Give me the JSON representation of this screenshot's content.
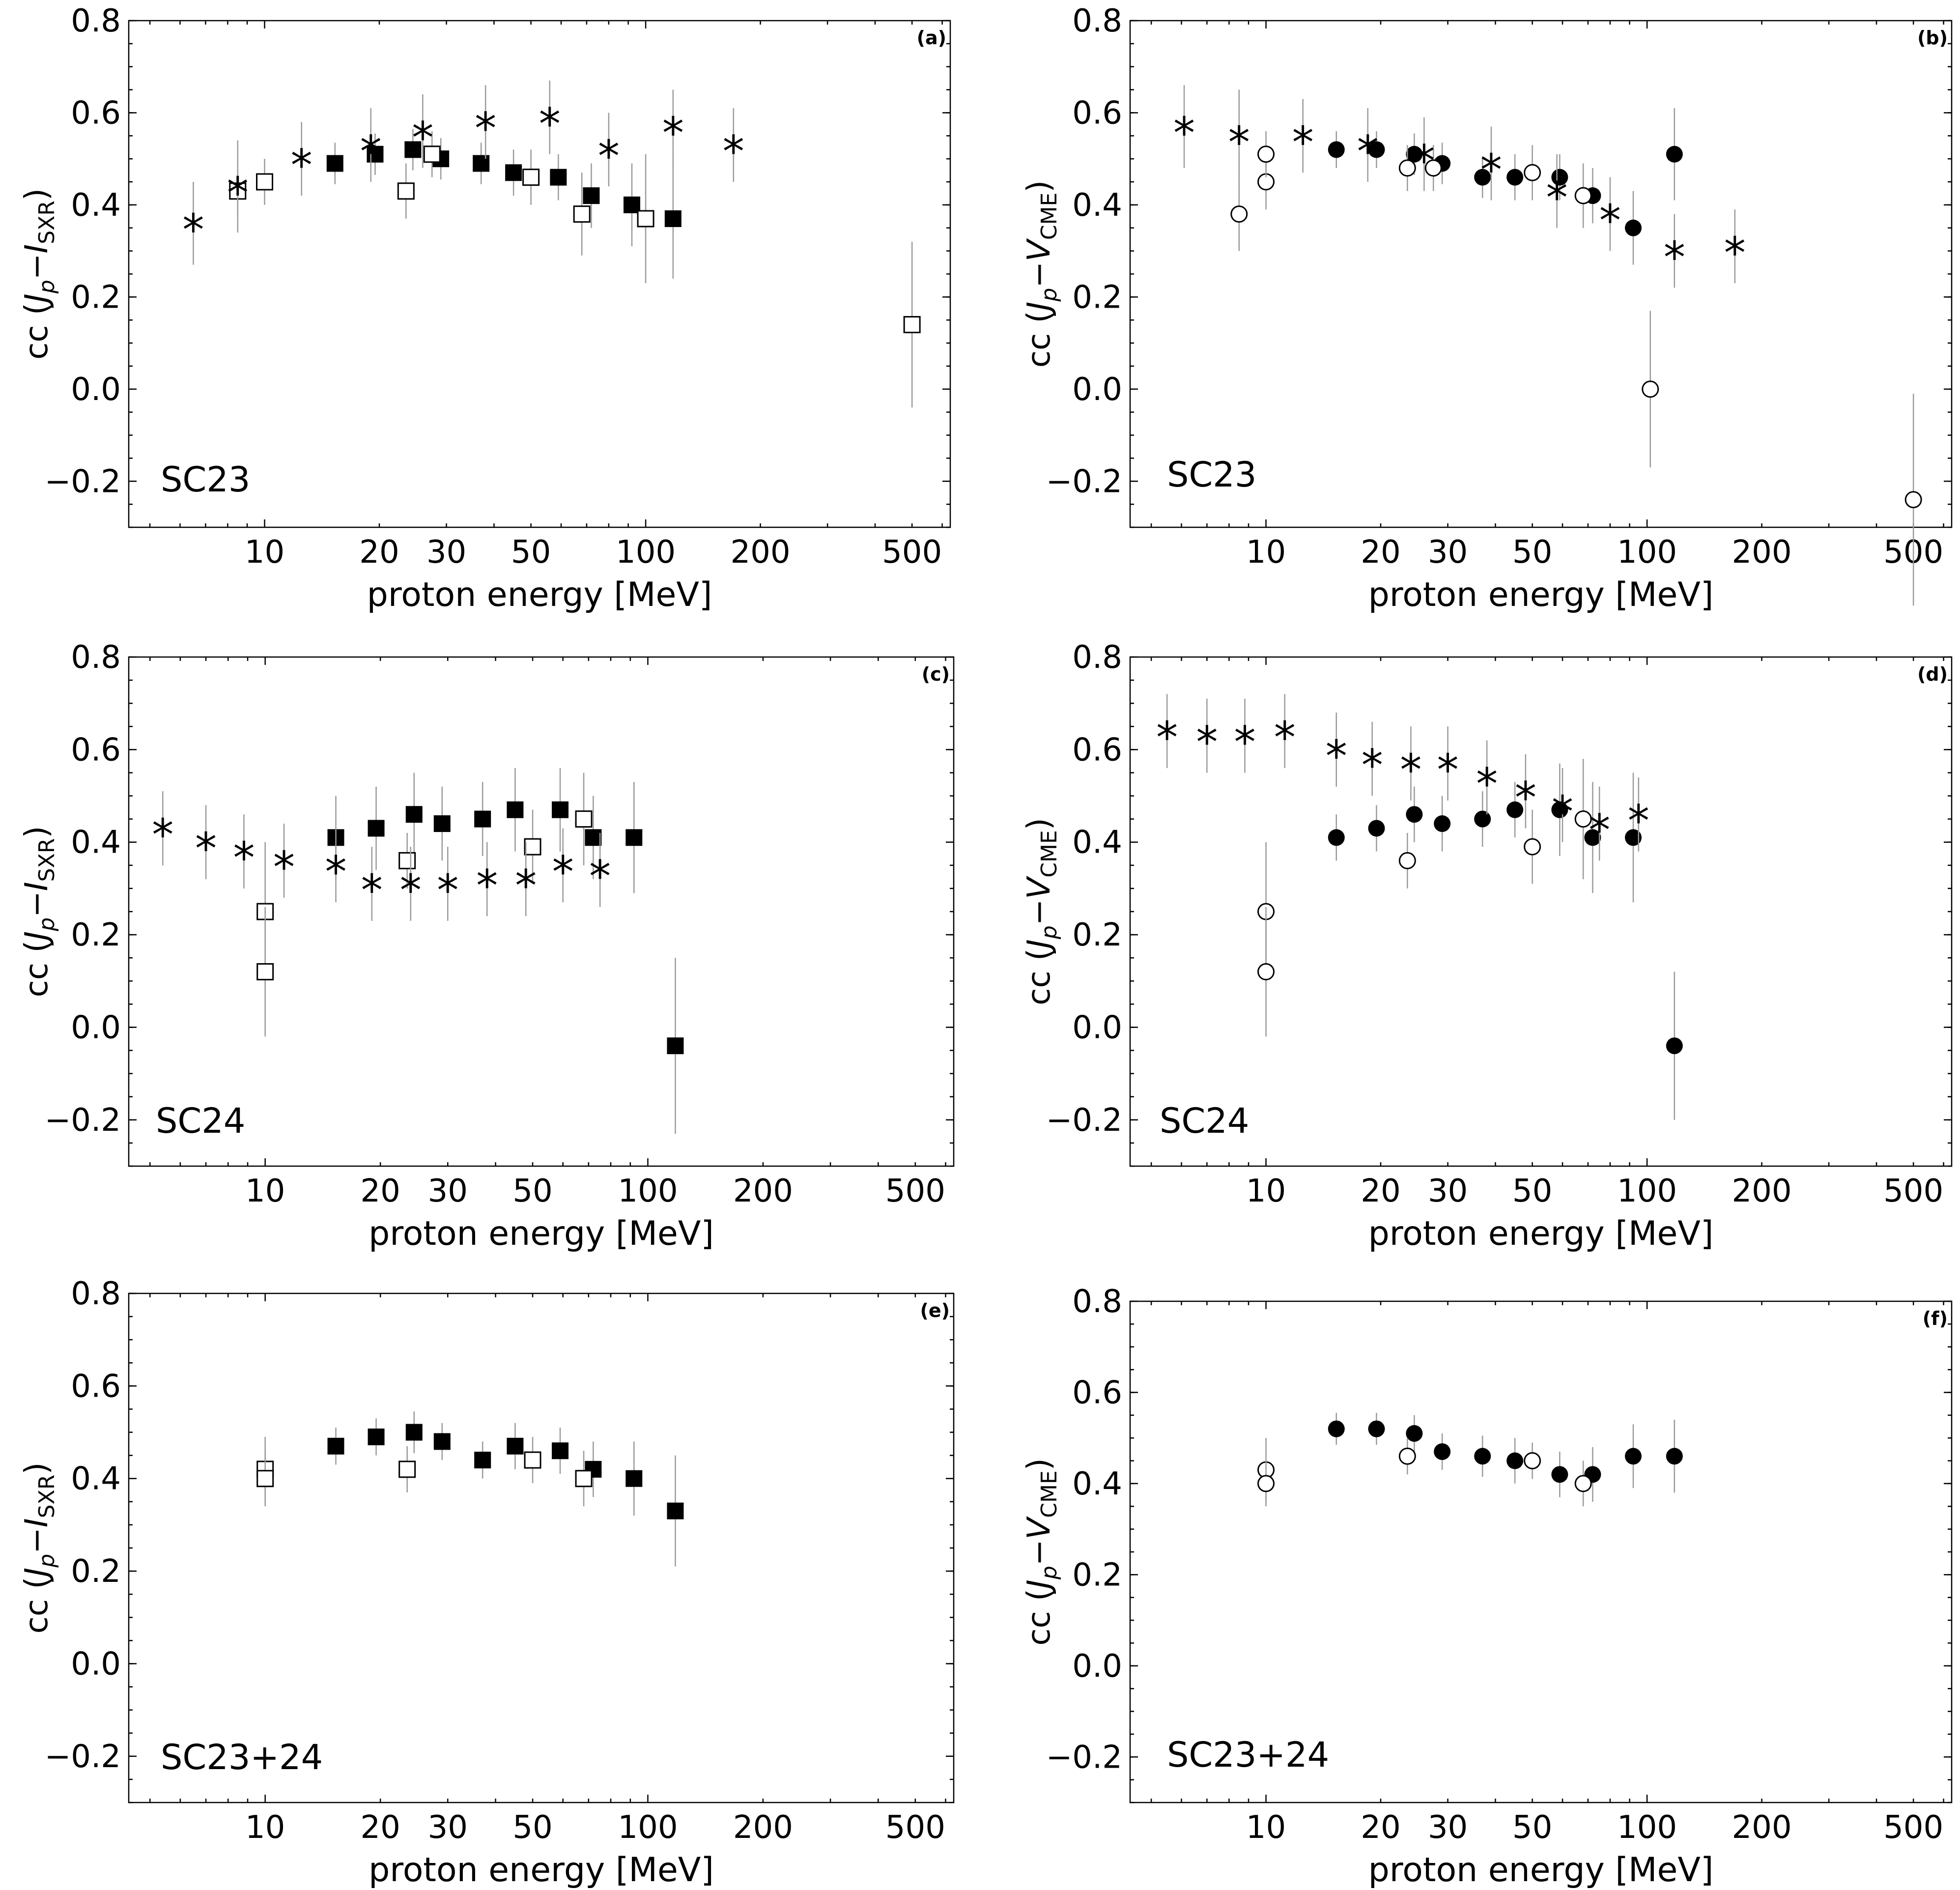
{
  "figure": {
    "x_axis_label": "proton energy [MeV]",
    "y_label_sxr": {
      "prefix": "cc (",
      "J": "J",
      "p": "p",
      "dash": "−",
      "I": "I",
      "sub": "SXR",
      "suffix": ")"
    },
    "y_label_cme": {
      "prefix": "cc (",
      "J": "J",
      "p": "p",
      "dash": "−",
      "V": "V",
      "sub": "CME",
      "suffix": ")"
    }
  },
  "chart_data": [
    {
      "panel": "(a)",
      "cycle": "SC23",
      "type": "scatter",
      "ylabel_kind": "sxr",
      "xscale": "log",
      "xlim": [
        4.4,
        630
      ],
      "ylim": [
        -0.3,
        0.8
      ],
      "xticks": [
        10,
        20,
        30,
        50,
        100,
        200,
        500
      ],
      "yticks": [
        -0.2,
        0.0,
        0.2,
        0.4,
        0.6,
        0.8
      ],
      "series": [
        {
          "name": "filled squares",
          "marker": "square-filled",
          "points": [
            [
              15.3,
              0.49,
              0.045
            ],
            [
              19.5,
              0.51,
              0.045
            ],
            [
              24.5,
              0.52,
              0.045
            ],
            [
              29,
              0.5,
              0.045
            ],
            [
              37,
              0.49,
              0.045
            ],
            [
              45,
              0.47,
              0.05
            ],
            [
              59,
              0.46,
              0.05
            ],
            [
              72,
              0.42,
              0.07
            ],
            [
              92,
              0.4,
              0.09
            ],
            [
              118,
              0.37,
              0.13
            ]
          ]
        },
        {
          "name": "open squares",
          "marker": "square-open",
          "points": [
            [
              8.5,
              0.43,
              0.05
            ],
            [
              10,
              0.45,
              0.05
            ],
            [
              23.5,
              0.43,
              0.06
            ],
            [
              27.5,
              0.51,
              0.05
            ],
            [
              50,
              0.46,
              0.06
            ],
            [
              68,
              0.38,
              0.09
            ],
            [
              100,
              0.37,
              0.14
            ],
            [
              500,
              0.14,
              0.18
            ]
          ]
        },
        {
          "name": "asterisks",
          "marker": "asterisk",
          "points": [
            [
              6.5,
              0.36,
              0.09
            ],
            [
              8.5,
              0.44,
              0.1
            ],
            [
              12.5,
              0.5,
              0.08
            ],
            [
              19,
              0.53,
              0.08
            ],
            [
              26,
              0.56,
              0.08
            ],
            [
              38,
              0.58,
              0.08
            ],
            [
              56,
              0.59,
              0.08
            ],
            [
              80,
              0.52,
              0.08
            ],
            [
              118,
              0.57,
              0.08
            ],
            [
              170,
              0.53,
              0.08
            ]
          ]
        }
      ]
    },
    {
      "panel": "(b)",
      "cycle": "SC23",
      "type": "scatter",
      "ylabel_kind": "cme",
      "xscale": "log",
      "xlim": [
        4.4,
        630
      ],
      "ylim": [
        -0.3,
        0.8
      ],
      "xticks": [
        10,
        20,
        30,
        50,
        100,
        200,
        500
      ],
      "yticks": [
        -0.2,
        0.0,
        0.2,
        0.4,
        0.6,
        0.8
      ],
      "series": [
        {
          "name": "filled circles",
          "marker": "circle-filled",
          "points": [
            [
              15.3,
              0.52,
              0.04
            ],
            [
              19.5,
              0.52,
              0.04
            ],
            [
              24.5,
              0.51,
              0.045
            ],
            [
              29,
              0.49,
              0.045
            ],
            [
              37,
              0.46,
              0.045
            ],
            [
              45,
              0.46,
              0.05
            ],
            [
              59,
              0.46,
              0.05
            ],
            [
              72,
              0.42,
              0.06
            ],
            [
              92,
              0.35,
              0.08
            ],
            [
              118,
              0.51,
              0.1
            ]
          ]
        },
        {
          "name": "open circles",
          "marker": "circle-open",
          "points": [
            [
              8.5,
              0.38,
              0.08
            ],
            [
              10,
              0.45,
              0.06
            ],
            [
              10,
              0.51,
              0.05
            ],
            [
              23.5,
              0.48,
              0.05
            ],
            [
              27.5,
              0.48,
              0.05
            ],
            [
              50,
              0.47,
              0.06
            ],
            [
              68,
              0.42,
              0.07
            ],
            [
              102,
              0.0,
              0.17
            ],
            [
              500,
              -0.24,
              0.23
            ]
          ]
        },
        {
          "name": "asterisks",
          "marker": "asterisk",
          "points": [
            [
              6.1,
              0.57,
              0.09
            ],
            [
              8.5,
              0.55,
              0.1
            ],
            [
              12.5,
              0.55,
              0.08
            ],
            [
              18.5,
              0.53,
              0.08
            ],
            [
              26,
              0.51,
              0.08
            ],
            [
              39,
              0.49,
              0.08
            ],
            [
              58,
              0.43,
              0.08
            ],
            [
              80,
              0.38,
              0.08
            ],
            [
              118,
              0.3,
              0.08
            ],
            [
              170,
              0.31,
              0.08
            ]
          ]
        }
      ]
    },
    {
      "panel": "(c)",
      "cycle": "SC24",
      "type": "scatter",
      "ylabel_kind": "sxr",
      "xscale": "log",
      "xlim": [
        4.4,
        630
      ],
      "ylim": [
        -0.3,
        0.8
      ],
      "xticks": [
        10,
        20,
        30,
        50,
        100,
        200,
        500
      ],
      "yticks": [
        -0.2,
        0.0,
        0.2,
        0.4,
        0.6,
        0.8
      ],
      "series": [
        {
          "name": "filled squares",
          "marker": "square-filled",
          "points": [
            [
              15.3,
              0.41,
              0.09
            ],
            [
              19.5,
              0.43,
              0.09
            ],
            [
              24.5,
              0.46,
              0.09
            ],
            [
              29,
              0.44,
              0.08
            ],
            [
              37,
              0.45,
              0.08
            ],
            [
              45,
              0.47,
              0.09
            ],
            [
              59,
              0.47,
              0.09
            ],
            [
              72,
              0.41,
              0.09
            ],
            [
              92,
              0.41,
              0.12
            ],
            [
              118,
              -0.04,
              0.19
            ]
          ]
        },
        {
          "name": "open squares",
          "marker": "square-open",
          "points": [
            [
              10,
              0.25,
              0.15
            ],
            [
              10,
              0.12,
              0.14
            ],
            [
              23.5,
              0.36,
              0.06
            ],
            [
              50,
              0.39,
              0.08
            ],
            [
              68,
              0.45,
              0.1
            ]
          ]
        },
        {
          "name": "asterisks",
          "marker": "asterisk",
          "points": [
            [
              5.4,
              0.43,
              0.08
            ],
            [
              7,
              0.4,
              0.08
            ],
            [
              8.8,
              0.38,
              0.08
            ],
            [
              11.2,
              0.36,
              0.08
            ],
            [
              15.3,
              0.35,
              0.08
            ],
            [
              19,
              0.31,
              0.08
            ],
            [
              24,
              0.31,
              0.08
            ],
            [
              30,
              0.31,
              0.08
            ],
            [
              38,
              0.32,
              0.08
            ],
            [
              48,
              0.32,
              0.08
            ],
            [
              60,
              0.35,
              0.08
            ],
            [
              75,
              0.34,
              0.08
            ]
          ]
        }
      ]
    },
    {
      "panel": "(d)",
      "cycle": "SC24",
      "type": "scatter",
      "ylabel_kind": "cme",
      "xscale": "log",
      "xlim": [
        4.4,
        630
      ],
      "ylim": [
        -0.3,
        0.8
      ],
      "xticks": [
        10,
        20,
        30,
        50,
        100,
        200,
        500
      ],
      "yticks": [
        -0.2,
        0.0,
        0.2,
        0.4,
        0.6,
        0.8
      ],
      "series": [
        {
          "name": "filled circles",
          "marker": "circle-filled",
          "points": [
            [
              15.3,
              0.41,
              0.05
            ],
            [
              19.5,
              0.43,
              0.05
            ],
            [
              24.5,
              0.46,
              0.06
            ],
            [
              29,
              0.44,
              0.06
            ],
            [
              37,
              0.45,
              0.06
            ],
            [
              45,
              0.47,
              0.06
            ],
            [
              59,
              0.47,
              0.1
            ],
            [
              72,
              0.41,
              0.12
            ],
            [
              92,
              0.41,
              0.14
            ],
            [
              118,
              -0.04,
              0.16
            ]
          ]
        },
        {
          "name": "open circles",
          "marker": "circle-open",
          "points": [
            [
              10,
              0.25,
              0.15
            ],
            [
              10,
              0.12,
              0.14
            ],
            [
              23.5,
              0.36,
              0.06
            ],
            [
              50,
              0.39,
              0.08
            ],
            [
              68,
              0.45,
              0.13
            ]
          ]
        },
        {
          "name": "asterisks",
          "marker": "asterisk",
          "points": [
            [
              5.5,
              0.64,
              0.08
            ],
            [
              7,
              0.63,
              0.08
            ],
            [
              8.8,
              0.63,
              0.08
            ],
            [
              11.2,
              0.64,
              0.08
            ],
            [
              15.3,
              0.6,
              0.08
            ],
            [
              19,
              0.58,
              0.08
            ],
            [
              24,
              0.57,
              0.08
            ],
            [
              30,
              0.57,
              0.08
            ],
            [
              38,
              0.54,
              0.08
            ],
            [
              48,
              0.51,
              0.08
            ],
            [
              60,
              0.48,
              0.08
            ],
            [
              75,
              0.44,
              0.08
            ],
            [
              95,
              0.46,
              0.08
            ]
          ]
        }
      ]
    },
    {
      "panel": "(e)",
      "cycle": "SC23+24",
      "type": "scatter",
      "ylabel_kind": "sxr",
      "xscale": "log",
      "xlim": [
        4.4,
        630
      ],
      "ylim": [
        -0.3,
        0.8
      ],
      "xticks": [
        10,
        20,
        30,
        50,
        100,
        200,
        500
      ],
      "yticks": [
        -0.2,
        0.0,
        0.2,
        0.4,
        0.6,
        0.8
      ],
      "series": [
        {
          "name": "filled squares",
          "marker": "square-filled",
          "points": [
            [
              15.3,
              0.47,
              0.04
            ],
            [
              19.5,
              0.49,
              0.04
            ],
            [
              24.5,
              0.5,
              0.045
            ],
            [
              29,
              0.48,
              0.04
            ],
            [
              37,
              0.44,
              0.04
            ],
            [
              45,
              0.47,
              0.05
            ],
            [
              59,
              0.46,
              0.05
            ],
            [
              72,
              0.42,
              0.06
            ],
            [
              92,
              0.4,
              0.08
            ],
            [
              118,
              0.33,
              0.12
            ]
          ]
        },
        {
          "name": "open squares",
          "marker": "square-open",
          "points": [
            [
              10,
              0.42,
              0.07
            ],
            [
              10,
              0.4,
              0.06
            ],
            [
              23.5,
              0.42,
              0.05
            ],
            [
              50,
              0.44,
              0.05
            ],
            [
              68,
              0.4,
              0.06
            ]
          ]
        }
      ]
    },
    {
      "panel": "(f)",
      "cycle": "SC23+24",
      "type": "scatter",
      "ylabel_kind": "cme",
      "xscale": "log",
      "xlim": [
        4.4,
        630
      ],
      "ylim": [
        -0.3,
        0.8
      ],
      "xticks": [
        10,
        20,
        30,
        50,
        100,
        200,
        500
      ],
      "yticks": [
        -0.2,
        0.0,
        0.2,
        0.4,
        0.6,
        0.8
      ],
      "series": [
        {
          "name": "filled circles",
          "marker": "circle-filled",
          "points": [
            [
              15.3,
              0.52,
              0.035
            ],
            [
              19.5,
              0.52,
              0.035
            ],
            [
              24.5,
              0.51,
              0.04
            ],
            [
              29,
              0.47,
              0.04
            ],
            [
              37,
              0.46,
              0.045
            ],
            [
              45,
              0.45,
              0.05
            ],
            [
              59,
              0.42,
              0.05
            ],
            [
              72,
              0.42,
              0.06
            ],
            [
              92,
              0.46,
              0.07
            ],
            [
              118,
              0.46,
              0.08
            ]
          ]
        },
        {
          "name": "open circles",
          "marker": "circle-open",
          "points": [
            [
              10,
              0.43,
              0.07
            ],
            [
              10,
              0.4,
              0.05
            ],
            [
              23.5,
              0.46,
              0.04
            ],
            [
              50,
              0.45,
              0.04
            ],
            [
              68,
              0.4,
              0.05
            ]
          ]
        }
      ]
    }
  ]
}
